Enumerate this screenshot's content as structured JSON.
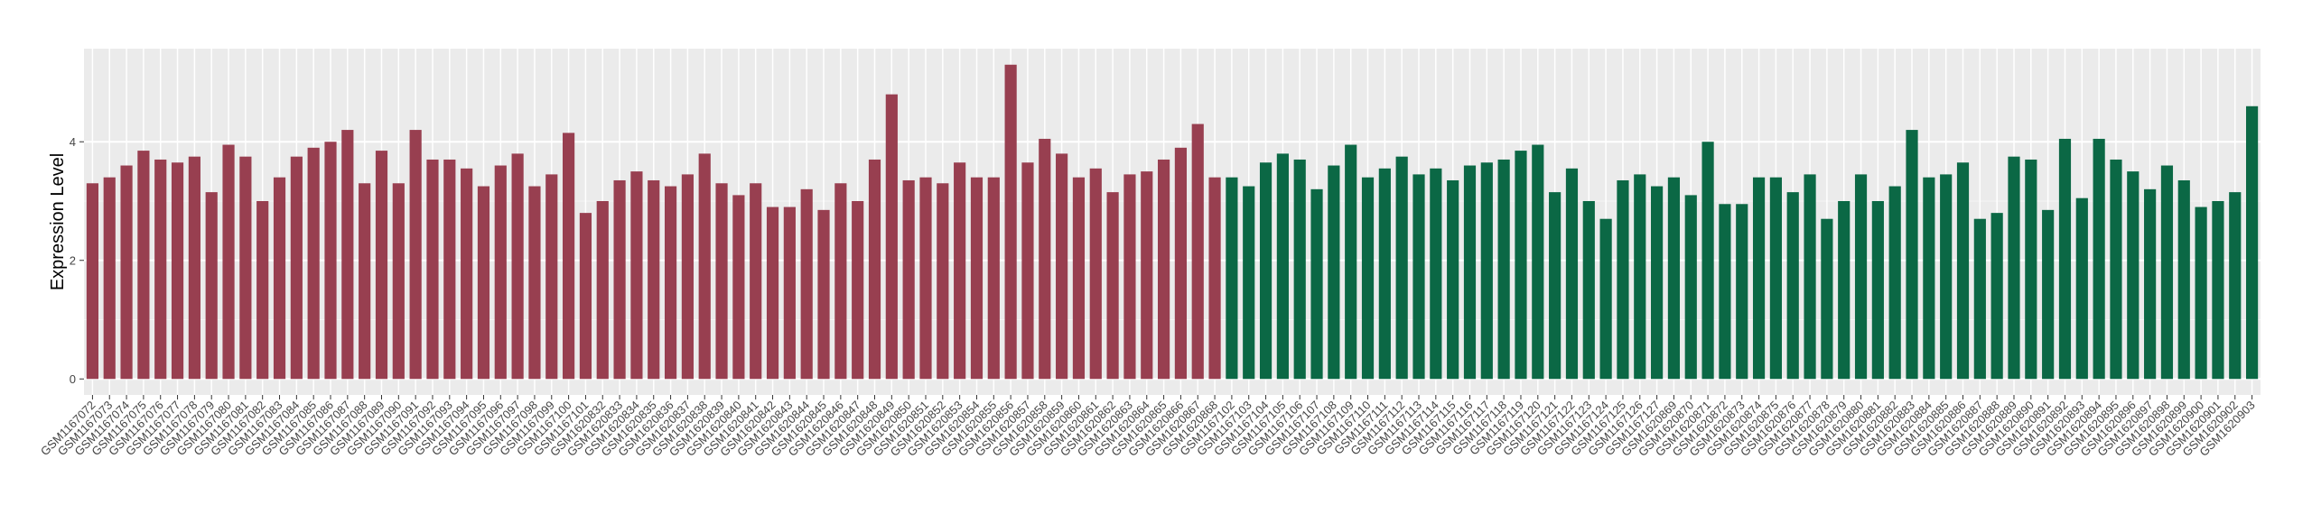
{
  "chart_data": {
    "type": "bar",
    "y_label": "Expression Level",
    "categories": [
      "GSM1167072",
      "GSM1167073",
      "GSM1167074",
      "GSM1167075",
      "GSM1167076",
      "GSM1167077",
      "GSM1167078",
      "GSM1167079",
      "GSM1167080",
      "GSM1167081",
      "GSM1167082",
      "GSM1167083",
      "GSM1167084",
      "GSM1167085",
      "GSM1167086",
      "GSM1167087",
      "GSM1167088",
      "GSM1167089",
      "GSM1167090",
      "GSM1167091",
      "GSM1167092",
      "GSM1167093",
      "GSM1167094",
      "GSM1167095",
      "GSM1167096",
      "GSM1167097",
      "GSM1167098",
      "GSM1167099",
      "GSM1167100",
      "GSM1167101",
      "GSM1620832",
      "GSM1620833",
      "GSM1620834",
      "GSM1620835",
      "GSM1620836",
      "GSM1620837",
      "GSM1620838",
      "GSM1620839",
      "GSM1620840",
      "GSM1620841",
      "GSM1620842",
      "GSM1620843",
      "GSM1620844",
      "GSM1620845",
      "GSM1620846",
      "GSM1620847",
      "GSM1620848",
      "GSM1620849",
      "GSM1620850",
      "GSM1620851",
      "GSM1620852",
      "GSM1620853",
      "GSM1620854",
      "GSM1620855",
      "GSM1620856",
      "GSM1620857",
      "GSM1620858",
      "GSM1620859",
      "GSM1620860",
      "GSM1620861",
      "GSM1620862",
      "GSM1620863",
      "GSM1620864",
      "GSM1620865",
      "GSM1620866",
      "GSM1620867",
      "GSM1620868",
      "GSM1167102",
      "GSM1167103",
      "GSM1167104",
      "GSM1167105",
      "GSM1167106",
      "GSM1167107",
      "GSM1167108",
      "GSM1167109",
      "GSM1167110",
      "GSM1167111",
      "GSM1167112",
      "GSM1167113",
      "GSM1167114",
      "GSM1167115",
      "GSM1167116",
      "GSM1167117",
      "GSM1167118",
      "GSM1167119",
      "GSM1167120",
      "GSM1167121",
      "GSM1167122",
      "GSM1167123",
      "GSM1167124",
      "GSM1167125",
      "GSM1167126",
      "GSM1167127",
      "GSM1620869",
      "GSM1620870",
      "GSM1620871",
      "GSM1620872",
      "GSM1620873",
      "GSM1620874",
      "GSM1620875",
      "GSM1620876",
      "GSM1620877",
      "GSM1620878",
      "GSM1620879",
      "GSM1620880",
      "GSM1620881",
      "GSM1620882",
      "GSM1620883",
      "GSM1620884",
      "GSM1620885",
      "GSM1620886",
      "GSM1620887",
      "GSM1620888",
      "GSM1620889",
      "GSM1620890",
      "GSM1620891",
      "GSM1620892",
      "GSM1620893",
      "GSM1620894",
      "GSM1620895",
      "GSM1620896",
      "GSM1620897",
      "GSM1620898",
      "GSM1620899",
      "GSM1620900",
      "GSM1620901",
      "GSM1620902",
      "GSM1620903"
    ],
    "series": [
      {
        "color": "#983f50",
        "values": [
          3.3,
          3.4,
          3.6,
          3.85,
          3.7,
          3.65,
          3.75,
          3.15,
          3.95,
          3.75,
          3.0,
          3.4,
          3.75,
          3.9,
          4.0,
          4.2,
          3.3,
          3.85,
          3.3,
          4.2,
          3.7,
          3.7,
          3.55,
          3.25,
          3.6,
          3.8,
          3.25,
          3.45,
          4.15,
          2.8,
          3.0,
          3.35,
          3.5,
          3.35,
          3.25,
          3.45,
          3.8,
          3.3,
          3.1,
          3.3,
          2.9,
          2.9,
          3.2,
          2.85,
          3.3,
          3.0,
          3.7,
          4.8,
          3.35,
          3.4,
          3.3,
          3.65,
          3.4,
          3.4,
          5.3,
          3.65,
          4.05,
          3.8,
          3.4,
          3.55,
          3.15,
          3.45,
          3.5,
          3.7,
          3.9,
          4.3,
          3.4,
          null,
          null,
          null,
          null,
          null,
          null,
          null,
          null,
          null,
          null,
          null,
          null,
          null,
          null,
          null,
          null,
          null,
          null,
          null,
          null,
          null,
          null,
          null,
          null,
          null,
          null,
          null,
          null,
          null,
          null,
          null,
          null,
          null,
          null,
          null,
          null,
          null,
          null,
          null,
          null,
          null,
          null,
          null,
          null,
          null,
          null,
          null,
          null,
          null,
          null,
          null,
          null,
          null,
          null,
          null,
          null,
          null,
          null,
          null,
          null,
          null
        ]
      },
      {
        "color": "#0b6845",
        "values": [
          null,
          null,
          null,
          null,
          null,
          null,
          null,
          null,
          null,
          null,
          null,
          null,
          null,
          null,
          null,
          null,
          null,
          null,
          null,
          null,
          null,
          null,
          null,
          null,
          null,
          null,
          null,
          null,
          null,
          null,
          null,
          null,
          null,
          null,
          null,
          null,
          null,
          null,
          null,
          null,
          null,
          null,
          null,
          null,
          null,
          null,
          null,
          null,
          null,
          null,
          null,
          null,
          null,
          null,
          null,
          null,
          null,
          null,
          null,
          null,
          null,
          null,
          null,
          null,
          null,
          null,
          null,
          3.4,
          3.25,
          3.65,
          3.8,
          3.7,
          3.2,
          3.6,
          3.95,
          3.4,
          3.55,
          3.75,
          3.45,
          3.55,
          3.35,
          3.6,
          3.65,
          3.7,
          3.85,
          3.95,
          3.15,
          3.55,
          3.0,
          2.7,
          3.35,
          3.45,
          3.25,
          3.4,
          3.1,
          4.0,
          2.95,
          2.95,
          3.4,
          3.4,
          3.15,
          3.45,
          2.7,
          3.0,
          3.45,
          3.0,
          3.25,
          4.2,
          3.4,
          3.45,
          3.65,
          2.7,
          2.8,
          3.75,
          3.7,
          2.85,
          4.05,
          3.05,
          4.05,
          3.7,
          3.5,
          3.2,
          3.6,
          3.35,
          2.9,
          3.0,
          3.15,
          4.6
        ]
      }
    ],
    "ylim": [
      -0.27,
      5.57
    ],
    "yticks": [
      0,
      2,
      4
    ],
    "grid": true
  }
}
